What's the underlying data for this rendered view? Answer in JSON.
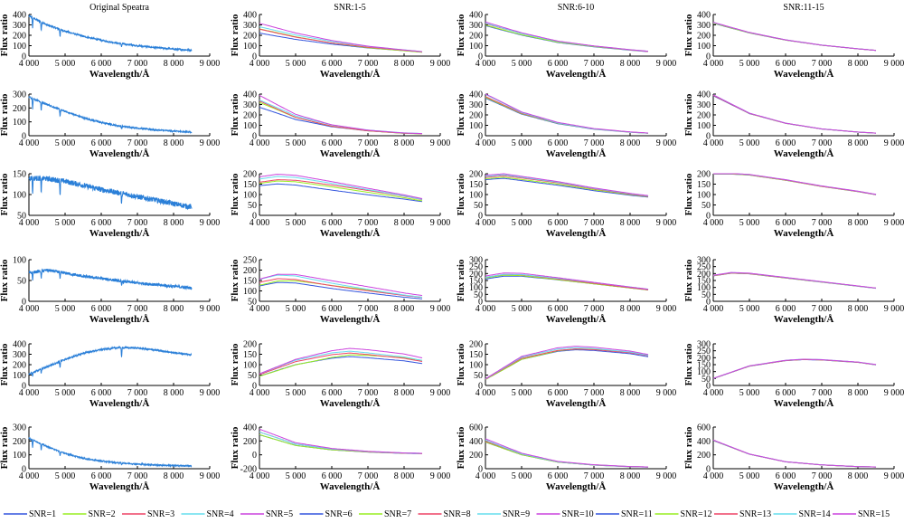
{
  "chart_data": {
    "type": "line",
    "grid": false,
    "legend_position": "bottom",
    "x_axis": {
      "label": "Wavelength/Å",
      "ticks": [
        4000,
        5000,
        6000,
        7000,
        8000,
        9000
      ],
      "tick_labels": [
        "4 000",
        "5 000",
        "6 000",
        "7 000",
        "8 000",
        "9 000"
      ],
      "range": [
        4000,
        9000
      ],
      "data_range": [
        4000,
        8500
      ]
    },
    "y_axis_label": "Flux ratio",
    "column_titles": [
      "Original Speatra",
      "SNR:1-5",
      "SNR:6-10",
      "SNR:11-15"
    ],
    "row_yticks": [
      [
        [
          0,
          100,
          200,
          300,
          400
        ],
        [
          0,
          100,
          200,
          300,
          400
        ],
        [
          0,
          100,
          200,
          300,
          400
        ],
        [
          0,
          100,
          200,
          300,
          400
        ]
      ],
      [
        [
          0,
          100,
          200,
          300
        ],
        [
          0,
          100,
          200,
          300,
          400
        ],
        [
          0,
          100,
          200,
          300,
          400
        ],
        [
          0,
          100,
          200,
          300,
          400
        ]
      ],
      [
        [
          50,
          100,
          150
        ],
        [
          0,
          50,
          100,
          150,
          200
        ],
        [
          0,
          50,
          100,
          150,
          200
        ],
        [
          0,
          50,
          100,
          150,
          200
        ]
      ],
      [
        [
          0,
          50,
          100
        ],
        [
          50,
          100,
          150,
          200,
          250
        ],
        [
          0,
          50,
          100,
          150,
          200,
          250,
          300
        ],
        [
          0,
          50,
          100,
          150,
          200,
          250,
          300
        ]
      ],
      [
        [
          0,
          100,
          200,
          300,
          400
        ],
        [
          0,
          50,
          100,
          150,
          200
        ],
        [
          0,
          50,
          100,
          150,
          200
        ],
        [
          0,
          50,
          100,
          150,
          200,
          250,
          300
        ]
      ],
      [
        [
          0,
          100,
          200,
          300
        ],
        [
          -200,
          0,
          200,
          400
        ],
        [
          0,
          200,
          400,
          600
        ],
        [
          0,
          200,
          400,
          600
        ]
      ]
    ],
    "absorption_lines_angstrom": [
      4102,
      4340,
      4861,
      6563
    ],
    "original_spectra": [
      {
        "x": [
          4000,
          4500,
          5000,
          5500,
          6000,
          6500,
          7000,
          7500,
          8000,
          8500
        ],
        "y": [
          385,
          300,
          240,
          190,
          152,
          122,
          100,
          82,
          68,
          57
        ]
      },
      {
        "x": [
          4000,
          4500,
          5000,
          5500,
          6000,
          6500,
          7000,
          7500,
          8000,
          8500
        ],
        "y": [
          280,
          225,
          175,
          130,
          95,
          70,
          55,
          42,
          33,
          26
        ]
      },
      {
        "x": [
          4000,
          4500,
          5000,
          5500,
          6000,
          6500,
          7000,
          7500,
          8000,
          8500
        ],
        "y": [
          140,
          138,
          132,
          122,
          112,
          104,
          95,
          87,
          78,
          70
        ]
      },
      {
        "x": [
          4000,
          4500,
          5000,
          5500,
          6000,
          6500,
          7000,
          7500,
          8000,
          8500
        ],
        "y": [
          68,
          75,
          68,
          60,
          55,
          49,
          44,
          40,
          36,
          32
        ]
      },
      {
        "x": [
          4000,
          4500,
          5000,
          5500,
          6000,
          6500,
          7000,
          7500,
          8000,
          8500
        ],
        "y": [
          110,
          180,
          250,
          310,
          345,
          365,
          360,
          340,
          315,
          295
        ]
      },
      {
        "x": [
          4000,
          4500,
          5000,
          5500,
          6000,
          6500,
          7000,
          7500,
          8000,
          8500
        ],
        "y": [
          220,
          160,
          110,
          75,
          55,
          42,
          33,
          27,
          22,
          20
        ]
      }
    ],
    "fitted_base": [
      [
        {
          "x": [
            4000,
            5000,
            6000,
            7000,
            8000,
            8500
          ],
          "y": [
            270,
            190,
            130,
            85,
            55,
            40
          ]
        },
        {
          "x": [
            4000,
            5000,
            6000,
            7000,
            8000,
            8500
          ],
          "y": [
            310,
            215,
            140,
            95,
            60,
            45
          ]
        },
        {
          "x": [
            4000,
            5000,
            6000,
            7000,
            8000,
            8500
          ],
          "y": [
            320,
            225,
            155,
            105,
            70,
            55
          ]
        }
      ],
      [
        {
          "x": [
            4000,
            5000,
            6000,
            7000,
            8000,
            8500
          ],
          "y": [
            330,
            180,
            95,
            50,
            25,
            20
          ]
        },
        {
          "x": [
            4000,
            5000,
            6000,
            7000,
            8000,
            8500
          ],
          "y": [
            380,
            215,
            120,
            65,
            35,
            25
          ]
        },
        {
          "x": [
            4000,
            5000,
            6000,
            7000,
            8000,
            8500
          ],
          "y": [
            390,
            215,
            120,
            65,
            35,
            25
          ]
        }
      ],
      [
        {
          "x": [
            4000,
            4500,
            5000,
            6000,
            7000,
            8000,
            8500
          ],
          "y": [
            160,
            170,
            165,
            140,
            115,
            90,
            75
          ]
        },
        {
          "x": [
            4000,
            4500,
            5000,
            6000,
            7000,
            8000,
            8500
          ],
          "y": [
            185,
            192,
            180,
            155,
            125,
            100,
            90
          ]
        },
        {
          "x": [
            4000,
            4500,
            5000,
            6000,
            7000,
            8000,
            8500
          ],
          "y": [
            200,
            200,
            195,
            170,
            140,
            115,
            100
          ]
        }
      ],
      [
        {
          "x": [
            4000,
            4500,
            5000,
            6000,
            7000,
            8000,
            8500
          ],
          "y": [
            140,
            160,
            158,
            130,
            105,
            80,
            70
          ]
        },
        {
          "x": [
            4000,
            4500,
            5000,
            6000,
            7000,
            8000,
            8500
          ],
          "y": [
            170,
            190,
            188,
            160,
            130,
            100,
            85
          ]
        },
        {
          "x": [
            4000,
            4500,
            5000,
            6000,
            7000,
            8000,
            8500
          ],
          "y": [
            185,
            205,
            200,
            170,
            140,
            110,
            95
          ]
        }
      ],
      [
        {
          "x": [
            4000,
            5000,
            6000,
            6500,
            7000,
            8000,
            8500
          ],
          "y": [
            50,
            110,
            145,
            155,
            150,
            135,
            120
          ]
        },
        {
          "x": [
            4000,
            5000,
            6000,
            6500,
            7000,
            8000,
            8500
          ],
          "y": [
            30,
            130,
            170,
            178,
            175,
            160,
            145
          ]
        },
        {
          "x": [
            4000,
            5000,
            6000,
            6500,
            7000,
            8000,
            8500
          ],
          "y": [
            50,
            140,
            180,
            188,
            185,
            168,
            150
          ]
        }
      ],
      [
        {
          "x": [
            4000,
            5000,
            6000,
            7000,
            8000,
            8500
          ],
          "y": [
            320,
            150,
            80,
            45,
            25,
            20
          ]
        },
        {
          "x": [
            4000,
            5000,
            6000,
            7000,
            8000,
            8500
          ],
          "y": [
            400,
            210,
            100,
            55,
            30,
            25
          ]
        },
        {
          "x": [
            4000,
            5000,
            6000,
            7000,
            8000,
            8500
          ],
          "y": [
            410,
            210,
            100,
            55,
            30,
            25
          ]
        }
      ]
    ],
    "series": [
      {
        "name": "SNR=1",
        "color": "#3355dd"
      },
      {
        "name": "SNR=2",
        "color": "#99ee22"
      },
      {
        "name": "SNR=3",
        "color": "#ee4466"
      },
      {
        "name": "SNR=4",
        "color": "#66ddee"
      },
      {
        "name": "SNR=5",
        "color": "#cc44dd"
      },
      {
        "name": "SNR=6",
        "color": "#3355dd"
      },
      {
        "name": "SNR=7",
        "color": "#99ee22"
      },
      {
        "name": "SNR=8",
        "color": "#ee4466"
      },
      {
        "name": "SNR=9",
        "color": "#66ddee"
      },
      {
        "name": "SNR=10",
        "color": "#cc44dd"
      },
      {
        "name": "SNR=11",
        "color": "#3355dd"
      },
      {
        "name": "SNR=12",
        "color": "#99ee22"
      },
      {
        "name": "SNR=13",
        "color": "#ee4466"
      },
      {
        "name": "SNR=14",
        "color": "#66ddee"
      },
      {
        "name": "SNR=15",
        "color": "#cc44dd"
      }
    ],
    "original_color": "#2a7fd8"
  }
}
